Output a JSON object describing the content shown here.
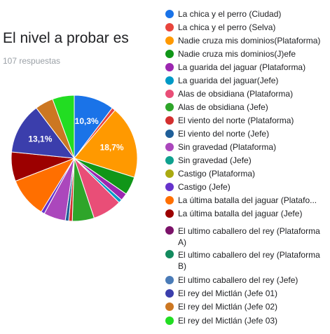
{
  "header": {
    "title": "El nivel a probar es",
    "responses": "107 respuestas"
  },
  "chart_data": {
    "type": "pie",
    "title": "El nivel a probar es",
    "start_angle_deg": 0,
    "direction": "clockwise",
    "slice_label_color": "#ffffff",
    "series": [
      {
        "name": "La chica y el perro (Ciudad)",
        "percent": 10.3,
        "color": "#1a73e8",
        "label": "10,3%"
      },
      {
        "name": "La chica y el perro (Selva)",
        "percent": 0.9,
        "color": "#e8453c",
        "label": ""
      },
      {
        "name": "Nadie cruza mis dominios(Plataforma)",
        "percent": 18.7,
        "color": "#ff9900",
        "label": "18,7%"
      },
      {
        "name": "Nadie cruza mis dominios(J)efe",
        "percent": 4.7,
        "color": "#109618",
        "label": ""
      },
      {
        "name": "La guarida del jaguar (Plataforma)",
        "percent": 1.9,
        "color": "#9c27b0",
        "label": ""
      },
      {
        "name": "La guarida del jaguar(Jefe)",
        "percent": 0.9,
        "color": "#0099c6",
        "label": ""
      },
      {
        "name": "Alas de obsidiana (Plataforma)",
        "percent": 7.5,
        "color": "#e94e77",
        "label": ""
      },
      {
        "name": "Alas de obsidiana (Jefe)",
        "percent": 5.6,
        "color": "#2ea52a",
        "label": ""
      },
      {
        "name": "El viento del norte (Plataforma)",
        "percent": 0.9,
        "color": "#d32f2f",
        "label": ""
      },
      {
        "name": "El viento del norte (Jefe)",
        "percent": 0.9,
        "color": "#1f5f99",
        "label": ""
      },
      {
        "name": "Sin gravedad (Plataforma)",
        "percent": 5.6,
        "color": "#ab47bc",
        "label": ""
      },
      {
        "name": "Sin gravedad (Jefe)",
        "percent": 0.0,
        "color": "#0fa18f",
        "label": ""
      },
      {
        "name": "Castigo (Plataforma)",
        "percent": 0.0,
        "color": "#aaaa11",
        "label": ""
      },
      {
        "name": "Castigo (Jefe)",
        "percent": 0.9,
        "color": "#6633cc",
        "label": ""
      },
      {
        "name": "La última batalla del jaguar (Plataforma)",
        "percent": 10.3,
        "color": "#ff6f00",
        "label": ""
      },
      {
        "name": "La última batalla del jaguar (Jefe)",
        "percent": 7.5,
        "color": "#9c0000",
        "label": ""
      },
      {
        "name": "El ultimo caballero del rey (Plataforma A)",
        "percent": 0.0,
        "color": "#7b1269",
        "label": ""
      },
      {
        "name": "El ultimo caballero del rey (Plataforma B)",
        "percent": 0.0,
        "color": "#138a5e",
        "label": ""
      },
      {
        "name": "El ultimo caballero del rey (Jefe)",
        "percent": 0.0,
        "color": "#4a7bb7",
        "label": ""
      },
      {
        "name": "El rey del Mictlán (Jefe 01)",
        "percent": 13.1,
        "color": "#3b3eac",
        "label": "13,1%"
      },
      {
        "name": "El rey del Mictlán (Jefe 02)",
        "percent": 4.7,
        "color": "#cc7722",
        "label": ""
      },
      {
        "name": "El rey del Mictlán (Jefe 03)",
        "percent": 5.6,
        "color": "#22dd22",
        "label": ""
      }
    ]
  },
  "legend_labels": [
    "La chica y el perro (Ciudad)",
    "La chica y el perro (Selva)",
    "Nadie cruza mis dominios(Plataforma)",
    "Nadie cruza mis dominios(J)efe",
    "La guarida del jaguar (Plataforma)",
    "La guarida del jaguar(Jefe)",
    "Alas de obsidiana (Plataforma)",
    "Alas de obsidiana (Jefe)",
    "El viento del norte (Plataforma)",
    "El viento del norte (Jefe)",
    "Sin gravedad (Plataforma)",
    "Sin gravedad (Jefe)",
    "Castigo (Plataforma)",
    "Castigo (Jefe)",
    "La última batalla del jaguar (Platafo...",
    "La última batalla del jaguar (Jefe)",
    "El ultimo caballero del rey (Plataforma A)",
    "El ultimo caballero del rey (Plataforma B)",
    "El ultimo caballero del rey (Jefe)",
    "El rey del Mictlán (Jefe 01)",
    "El rey del Mictlán (Jefe 02)",
    "El rey del Mictlán (Jefe 03)"
  ]
}
